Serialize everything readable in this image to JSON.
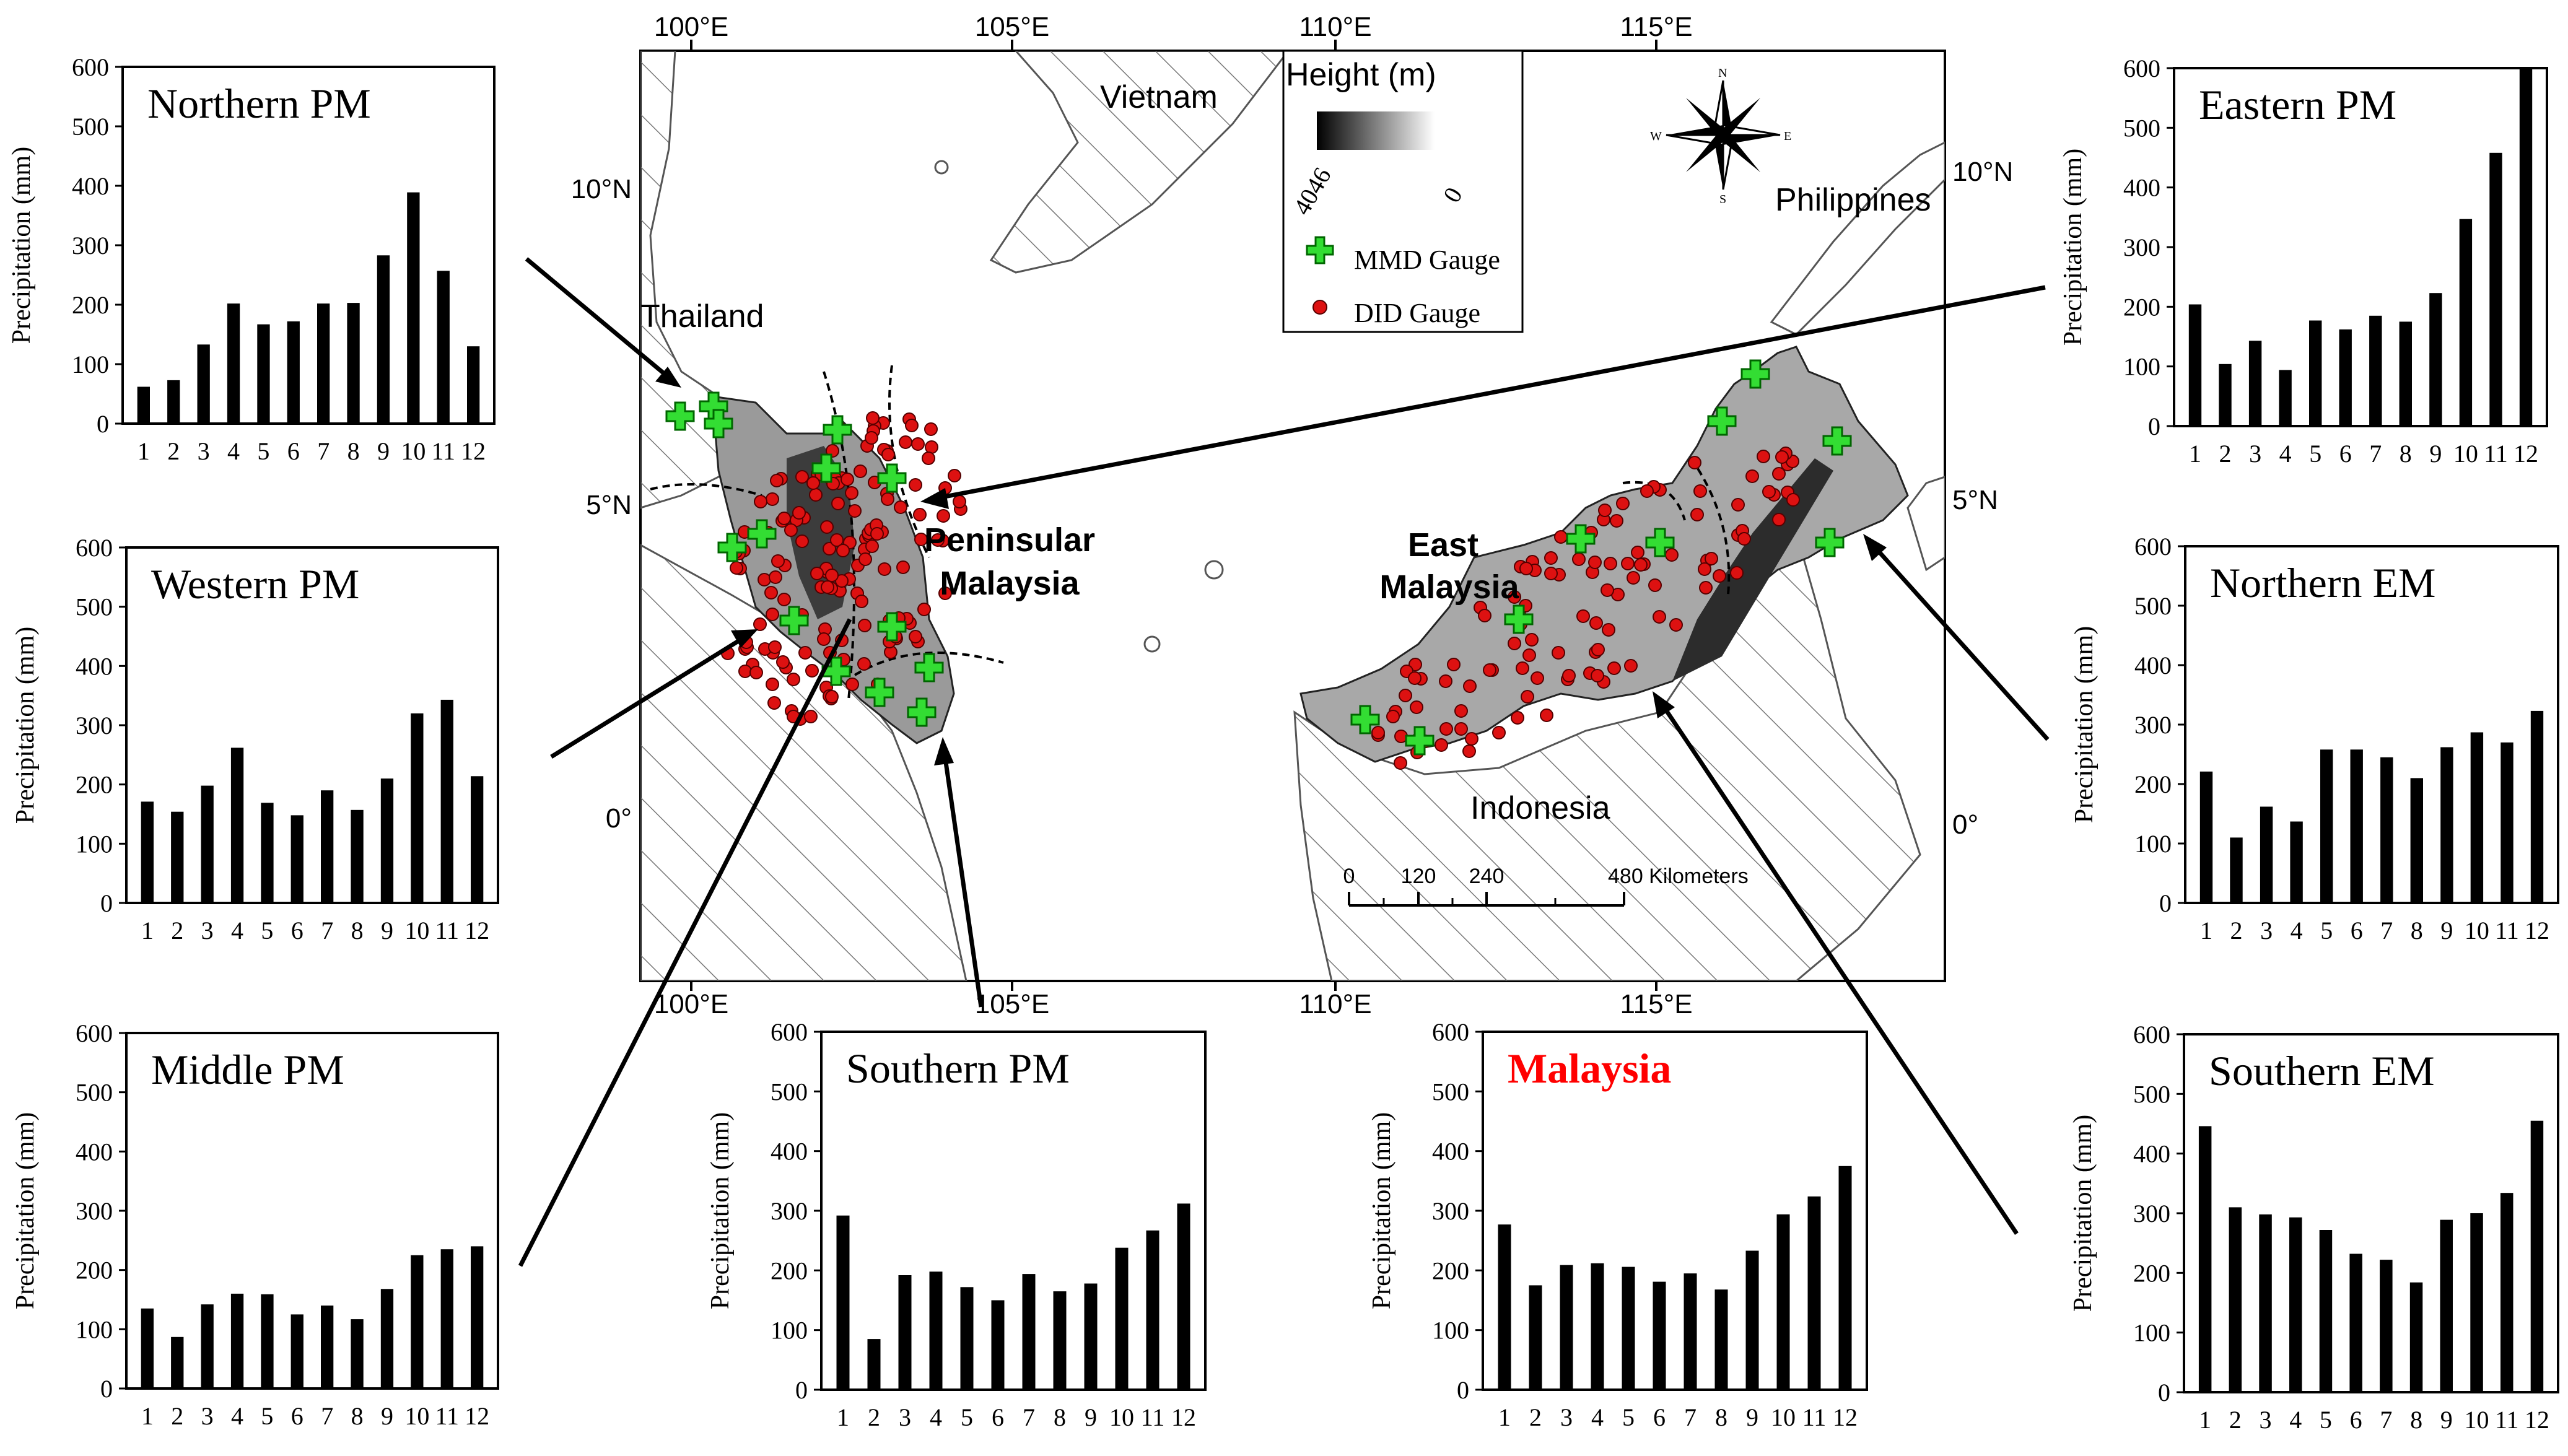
{
  "map": {
    "lon_labels": [
      "100°E",
      "105°E",
      "110°E",
      "115°E"
    ],
    "lat_labels_left": [
      "10°N",
      "5°N",
      "0°"
    ],
    "lat_labels_right": [
      "10°N",
      "5°N",
      "0°"
    ],
    "regions": {
      "vietnam": "Vietnam",
      "thailand": "Thailand",
      "philippines": "Philippines",
      "indonesia": "Indonesia",
      "peninsular_line1": "Peninsular",
      "peninsular_line2": "Malaysia",
      "east_line1": "East",
      "east_line2": "Malaysia"
    },
    "legend": {
      "title": "Height (m)",
      "high": "4046",
      "low": "0",
      "mmd": "MMD Gauge",
      "did": "DID Gauge"
    },
    "compass": {
      "n": "N",
      "s": "S",
      "e": "E",
      "w": "W"
    },
    "scalebar": {
      "t0": "0",
      "t1": "120",
      "t2": "240",
      "t3": "480 Kilometers"
    },
    "colors": {
      "mmd": "#33dd33",
      "did": "#dd1111",
      "title_highlight": "#ff0000"
    }
  },
  "chart_data": [
    {
      "id": "northern_pm",
      "type": "bar",
      "title": "Northern PM",
      "ylabel": "Precipitation (mm)",
      "ylim": [
        0,
        600
      ],
      "yticks": [
        0,
        100,
        200,
        300,
        400,
        500,
        600
      ],
      "categories": [
        "1",
        "2",
        "3",
        "4",
        "5",
        "6",
        "7",
        "8",
        "9",
        "10",
        "11",
        "12"
      ],
      "values": [
        62,
        73,
        133,
        202,
        167,
        172,
        202,
        203,
        283,
        389,
        257,
        130
      ]
    },
    {
      "id": "western_pm",
      "type": "bar",
      "title": "Western PM",
      "ylabel": "Precipitation (mm)",
      "ylim": [
        0,
        600
      ],
      "yticks": [
        0,
        100,
        200,
        300,
        400,
        500,
        600
      ],
      "categories": [
        "1",
        "2",
        "3",
        "4",
        "5",
        "6",
        "7",
        "8",
        "9",
        "10",
        "11",
        "12"
      ],
      "values": [
        171,
        154,
        198,
        262,
        169,
        148,
        190,
        157,
        210,
        320,
        343,
        214
      ]
    },
    {
      "id": "middle_pm",
      "type": "bar",
      "title": "Middle PM",
      "ylabel": "Precipitation (mm)",
      "ylim": [
        0,
        600
      ],
      "yticks": [
        0,
        100,
        200,
        300,
        400,
        500,
        600
      ],
      "categories": [
        "1",
        "2",
        "3",
        "4",
        "5",
        "6",
        "7",
        "8",
        "9",
        "10",
        "11",
        "12"
      ],
      "values": [
        135,
        87,
        142,
        160,
        159,
        125,
        140,
        117,
        168,
        225,
        235,
        240
      ]
    },
    {
      "id": "southern_pm",
      "type": "bar",
      "title": "Southern PM",
      "ylabel": "Precipitation (mm)",
      "ylim": [
        0,
        600
      ],
      "yticks": [
        0,
        100,
        200,
        300,
        400,
        500,
        600
      ],
      "categories": [
        "1",
        "2",
        "3",
        "4",
        "5",
        "6",
        "7",
        "8",
        "9",
        "10",
        "11",
        "12"
      ],
      "values": [
        292,
        85,
        192,
        198,
        172,
        150,
        194,
        165,
        178,
        238,
        267,
        312
      ]
    },
    {
      "id": "malaysia",
      "type": "bar",
      "title": "Malaysia",
      "title_color": "#ff0000",
      "ylabel": "Precipitation (mm)",
      "ylim": [
        0,
        600
      ],
      "yticks": [
        0,
        100,
        200,
        300,
        400,
        500,
        600
      ],
      "categories": [
        "1",
        "2",
        "3",
        "4",
        "5",
        "6",
        "7",
        "8",
        "9",
        "10",
        "11",
        "12"
      ],
      "values": [
        277,
        175,
        209,
        212,
        206,
        181,
        195,
        168,
        233,
        294,
        324,
        375
      ]
    },
    {
      "id": "eastern_pm",
      "type": "bar",
      "title": "Eastern PM",
      "ylabel": "Precipitation (mm)",
      "ylim": [
        0,
        600
      ],
      "yticks": [
        0,
        100,
        200,
        300,
        400,
        500,
        600
      ],
      "categories": [
        "1",
        "2",
        "3",
        "4",
        "5",
        "6",
        "7",
        "8",
        "9",
        "10",
        "11",
        "12"
      ],
      "values": [
        204,
        104,
        143,
        94,
        177,
        162,
        185,
        175,
        223,
        347,
        458,
        600
      ]
    },
    {
      "id": "northern_em",
      "type": "bar",
      "title": "Northern EM",
      "ylabel": "Precipitation (mm)",
      "ylim": [
        0,
        600
      ],
      "yticks": [
        0,
        100,
        200,
        300,
        400,
        500,
        600
      ],
      "categories": [
        "1",
        "2",
        "3",
        "4",
        "5",
        "6",
        "7",
        "8",
        "9",
        "10",
        "11",
        "12"
      ],
      "values": [
        221,
        110,
        162,
        137,
        258,
        258,
        245,
        210,
        262,
        287,
        270,
        323
      ]
    },
    {
      "id": "southern_em",
      "type": "bar",
      "title": "Southern EM",
      "ylabel": "Precipitation (mm)",
      "ylim": [
        0,
        600
      ],
      "yticks": [
        0,
        100,
        200,
        300,
        400,
        500,
        600
      ],
      "categories": [
        "1",
        "2",
        "3",
        "4",
        "5",
        "6",
        "7",
        "8",
        "9",
        "10",
        "11",
        "12"
      ],
      "values": [
        446,
        310,
        298,
        293,
        272,
        232,
        222,
        184,
        289,
        300,
        334,
        455
      ]
    }
  ]
}
